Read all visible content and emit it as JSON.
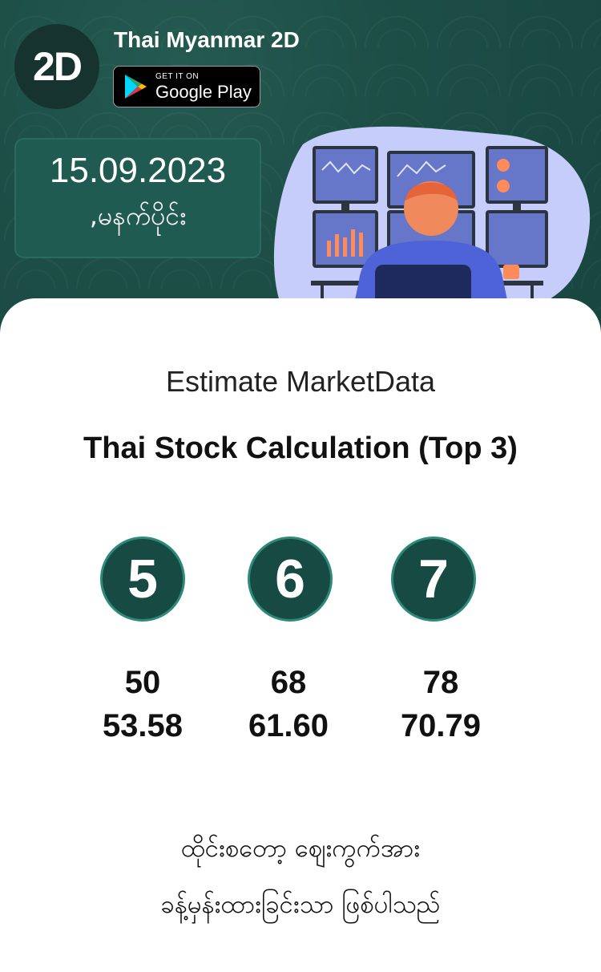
{
  "header": {
    "app_title": "Thai Myanmar 2D",
    "logo_text": "2D",
    "badge": {
      "small": "GET IT ON",
      "big": "Google Play",
      "icon": "google-play-icon"
    }
  },
  "date_box": {
    "date": "15.09.2023",
    "day": ",မနက်ပိုင်း"
  },
  "illustration": {
    "icon": "trader-monitors-illustration"
  },
  "content": {
    "subtitle": "Estimate MarketData",
    "title": "Thai Stock Calculation (Top 3)",
    "top3": [
      {
        "digit": "5",
        "value": "50",
        "price": "53.58"
      },
      {
        "digit": "6",
        "value": "68",
        "price": "61.60"
      },
      {
        "digit": "7",
        "value": "78",
        "price": "70.79"
      }
    ],
    "note_line1": "ထိုင်းစတော့ ဈေးကွက်အား",
    "note_line2": "ခန့်မှန်းထားခြင်းသာ ဖြစ်ပါသည်"
  },
  "colors": {
    "brand_green": "#1b4d45",
    "ball_fill": "#174a43",
    "ball_ring": "#2d8a79",
    "blob": "#c7cdfb"
  }
}
